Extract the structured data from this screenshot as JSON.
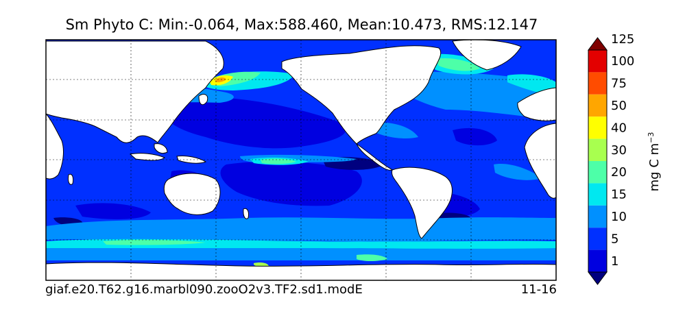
{
  "chart_data": {
    "type": "heatmap",
    "title": "Sm Phyto C: Min:-0.064, Max:588.460, Mean:10.473, RMS:12.147",
    "variable": "Sm Phyto C",
    "stats": {
      "min": -0.064,
      "max": 588.46,
      "mean": 10.473,
      "rms": 12.147
    },
    "units": {
      "base": "mg C m",
      "exponent": "−3"
    },
    "colorbar": {
      "levels": [
        1,
        5,
        10,
        15,
        20,
        30,
        40,
        50,
        75,
        100,
        125
      ],
      "tick_labels": [
        "1",
        "5",
        "10",
        "15",
        "20",
        "30",
        "40",
        "50",
        "75",
        "100",
        "125"
      ],
      "colors": [
        "#00007f",
        "#0000e0",
        "#0030ff",
        "#0090ff",
        "#00e8f0",
        "#4dffa8",
        "#a8ff4f",
        "#ffff00",
        "#ffa600",
        "#ff4c00",
        "#e30000",
        "#7f0000"
      ],
      "extend": "both"
    },
    "footer_left": "giaf.e20.T62.g16.marbl090.zooO2v3.TF2.sd1.modE",
    "footer_right": "11-16",
    "map": {
      "projection": "cylindrical",
      "land_color": "#ffffff",
      "grid": true,
      "coastlines": true
    }
  }
}
